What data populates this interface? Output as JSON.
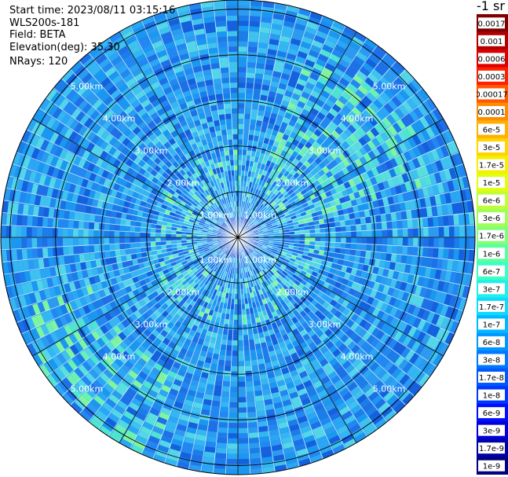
{
  "header": {
    "start_time": "Start time: 2023/08/11 03:15:16",
    "instrument": "WLS200s-181",
    "field": "Field: BETA",
    "elevation": "Elevation(deg): 35.30",
    "nrays": "NRays: 120"
  },
  "colorbar": {
    "unit": "-1 sr",
    "labels": [
      "0.0017",
      "0.001",
      "0.0006",
      "0.0003",
      "0.00017",
      "0.0001",
      "6e-5",
      "3e-5",
      "1.7e-5",
      "1e-5",
      "6e-6",
      "3e-6",
      "1.7e-6",
      "1e-6",
      "6e-7",
      "3e-7",
      "1.7e-7",
      "1e-7",
      "6e-8",
      "3e-8",
      "1.7e-8",
      "1e-8",
      "6e-9",
      "3e-9",
      "1.7e-9",
      "1e-9"
    ],
    "colors": [
      "#800000",
      "#b00000",
      "#dd0000",
      "#ff2000",
      "#ff5a00",
      "#ff8c00",
      "#ffb000",
      "#ffd400",
      "#f5f000",
      "#e0ff10",
      "#c0ff35",
      "#a0ff55",
      "#80ff78",
      "#5cffa0",
      "#3cffc4",
      "#20f0e8",
      "#10d8ff",
      "#00b8ff",
      "#0098ff",
      "#0078ff",
      "#0058ff",
      "#0038ff",
      "#0010ff",
      "#0000d8",
      "#0000a8",
      "#000080"
    ]
  },
  "chart_data": {
    "type": "heatmap",
    "projection": "polar (PPI scan)",
    "rays": 120,
    "range_rings_km": [
      1,
      2,
      3,
      4,
      5
    ],
    "ring_labels": [
      "1.00km",
      "2.00km",
      "3.00km",
      "4.00km",
      "5.00km"
    ],
    "max_range_km": 5.2,
    "spoke_angles_deg": [
      0,
      30,
      60,
      90,
      120,
      150,
      180,
      210,
      240,
      270,
      300,
      330
    ],
    "field": "BETA",
    "dominant_range": "1e-7 to 1e-8",
    "background_color": "#1d8fef"
  }
}
